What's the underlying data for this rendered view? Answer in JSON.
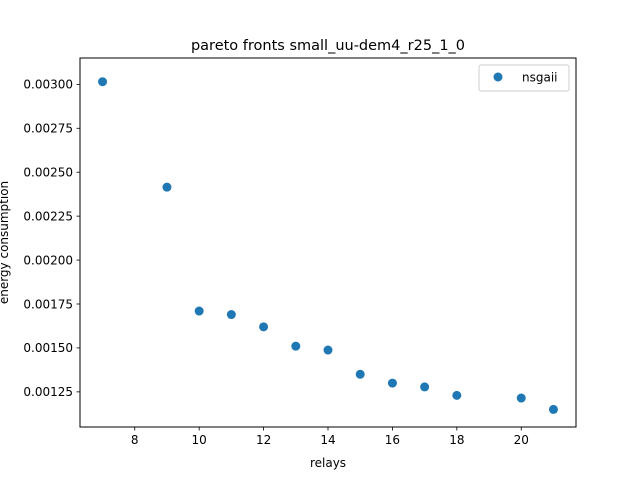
{
  "chart_data": {
    "type": "scatter",
    "title": "pareto fronts small_uu-dem4_r25_1_0",
    "xlabel": "relays",
    "ylabel": "energy consumption",
    "xlim": [
      6.3,
      21.7
    ],
    "ylim": [
      0.00105,
      0.00315
    ],
    "xticks": [
      8,
      10,
      12,
      14,
      16,
      18,
      20
    ],
    "yticks": [
      0.00125,
      0.0015,
      0.00175,
      0.002,
      0.00225,
      0.0025,
      0.00275,
      0.003
    ],
    "xtick_labels": [
      "8",
      "10",
      "12",
      "14",
      "16",
      "18",
      "20"
    ],
    "ytick_labels": [
      "0.00125",
      "0.00150",
      "0.00175",
      "0.00200",
      "0.00225",
      "0.00250",
      "0.00275",
      "0.00300"
    ],
    "grid": false,
    "legend_position": "top-right",
    "series": [
      {
        "name": "nsgaii",
        "color": "#1f77b4",
        "points": [
          [
            7,
            0.003015
          ],
          [
            9,
            0.002415
          ],
          [
            10,
            0.00171
          ],
          [
            11,
            0.00169
          ],
          [
            12,
            0.00162
          ],
          [
            13,
            0.00151
          ],
          [
            14,
            0.001488
          ],
          [
            15,
            0.00135
          ],
          [
            16,
            0.0013
          ],
          [
            17,
            0.001278
          ],
          [
            18,
            0.00123
          ],
          [
            20,
            0.001215
          ],
          [
            21,
            0.00115
          ]
        ]
      }
    ]
  }
}
